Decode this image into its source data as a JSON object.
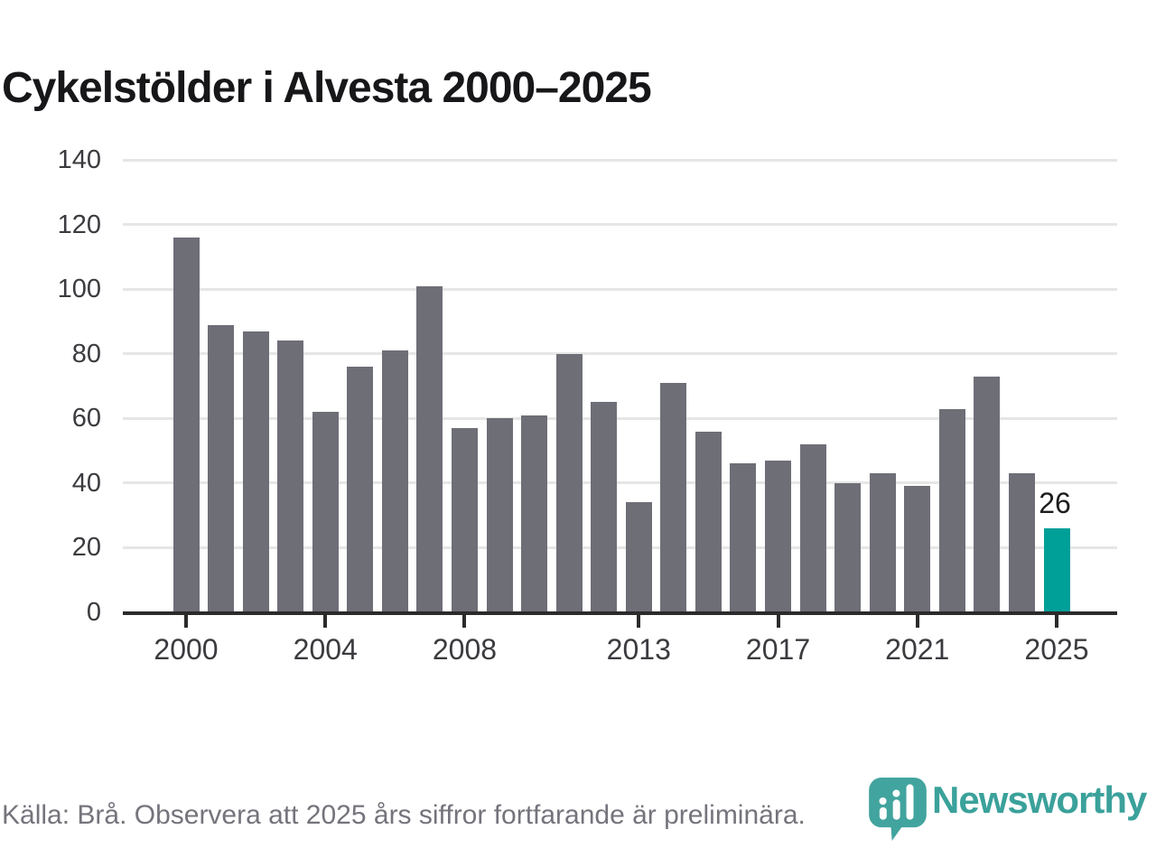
{
  "title": "Cykelstölder i Alvesta 2000–2025",
  "chart_data": {
    "type": "bar",
    "title": "Cykelstölder i Alvesta 2000–2025",
    "categories": [
      2000,
      2001,
      2002,
      2003,
      2004,
      2005,
      2006,
      2007,
      2008,
      2009,
      2010,
      2011,
      2012,
      2013,
      2014,
      2015,
      2016,
      2017,
      2018,
      2019,
      2020,
      2021,
      2022,
      2023,
      2024,
      2025
    ],
    "values": [
      116,
      89,
      87,
      84,
      62,
      76,
      81,
      101,
      57,
      60,
      61,
      80,
      65,
      34,
      71,
      56,
      46,
      47,
      52,
      40,
      43,
      39,
      63,
      73,
      43,
      26
    ],
    "xlabel": "",
    "ylabel": "",
    "ylim": [
      0,
      140
    ],
    "y_ticks": [
      0,
      20,
      40,
      60,
      80,
      100,
      120,
      140
    ],
    "x_tick_years": [
      2000,
      2004,
      2008,
      2013,
      2017,
      2021,
      2025
    ],
    "grid": true,
    "legend": "none",
    "bar_color": "#6e6e77",
    "highlight_year": 2025,
    "highlight_color": "#00a099",
    "annotation": {
      "year": 2025,
      "text": "26"
    }
  },
  "footer": {
    "source_note": "Källa: Brå. Observera att 2025 års siffror fortfarande är preliminära."
  },
  "branding": {
    "wordmark": "Newsworthy",
    "logo_icon": "newsworthy-bubble-barchart-icon",
    "logo_color": "#42a49e",
    "wordmark_color": "#3ba19b"
  }
}
